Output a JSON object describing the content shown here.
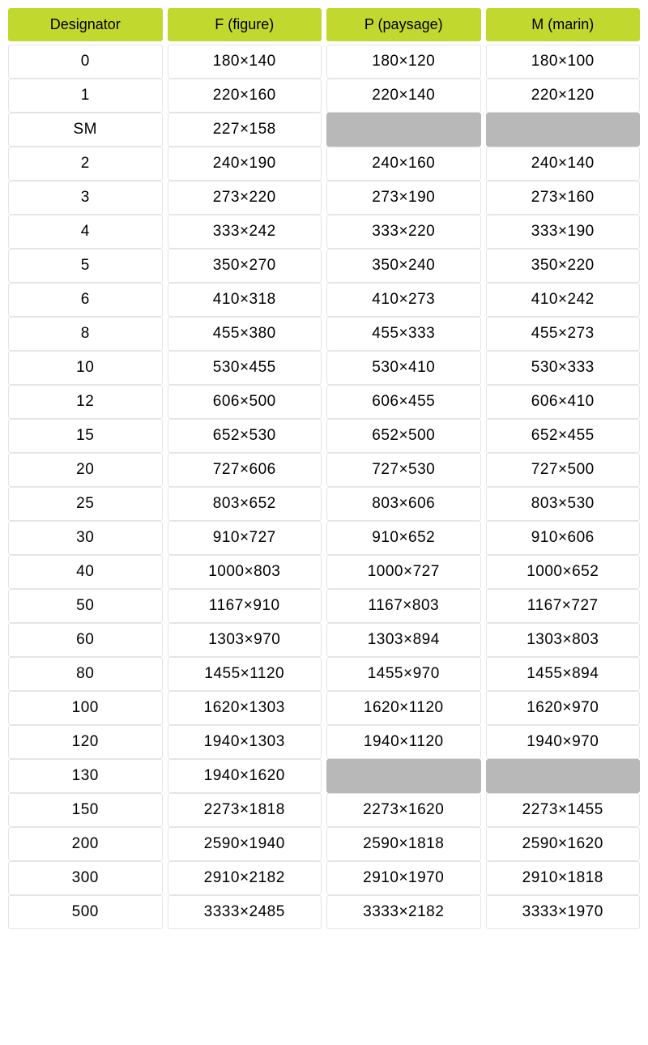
{
  "table": {
    "type": "table",
    "header_bg_color": "#c1d82f",
    "header_text_color": "#000000",
    "cell_bg_color": "#ffffff",
    "cell_border_color": "#e5e5e5",
    "empty_cell_bg_color": "#b8b8b8",
    "cell_text_color": "#000000",
    "header_fontsize": 18,
    "cell_fontsize": 19,
    "columns": [
      "Designator",
      "F (figure)",
      "P (paysage)",
      "M (marin)"
    ],
    "rows": [
      [
        "0",
        "180×140",
        "180×120",
        "180×100"
      ],
      [
        "1",
        "220×160",
        "220×140",
        "220×120"
      ],
      [
        "SM",
        "227×158",
        "",
        ""
      ],
      [
        "2",
        "240×190",
        "240×160",
        "240×140"
      ],
      [
        "3",
        "273×220",
        "273×190",
        "273×160"
      ],
      [
        "4",
        "333×242",
        "333×220",
        "333×190"
      ],
      [
        "5",
        "350×270",
        "350×240",
        "350×220"
      ],
      [
        "6",
        "410×318",
        "410×273",
        "410×242"
      ],
      [
        "8",
        "455×380",
        "455×333",
        "455×273"
      ],
      [
        "10",
        "530×455",
        "530×410",
        "530×333"
      ],
      [
        "12",
        "606×500",
        "606×455",
        "606×410"
      ],
      [
        "15",
        "652×530",
        "652×500",
        "652×455"
      ],
      [
        "20",
        "727×606",
        "727×530",
        "727×500"
      ],
      [
        "25",
        "803×652",
        "803×606",
        "803×530"
      ],
      [
        "30",
        "910×727",
        "910×652",
        "910×606"
      ],
      [
        "40",
        "1000×803",
        "1000×727",
        "1000×652"
      ],
      [
        "50",
        "1167×910",
        "1167×803",
        "1167×727"
      ],
      [
        "60",
        "1303×970",
        "1303×894",
        "1303×803"
      ],
      [
        "80",
        "1455×1120",
        "1455×970",
        "1455×894"
      ],
      [
        "100",
        "1620×1303",
        "1620×1120",
        "1620×970"
      ],
      [
        "120",
        "1940×1303",
        "1940×1120",
        "1940×970"
      ],
      [
        "130",
        "1940×1620",
        "",
        ""
      ],
      [
        "150",
        "2273×1818",
        "2273×1620",
        "2273×1455"
      ],
      [
        "200",
        "2590×1940",
        "2590×1818",
        "2590×1620"
      ],
      [
        "300",
        "2910×2182",
        "2910×1970",
        "2910×1818"
      ],
      [
        "500",
        "3333×2485",
        "3333×2182",
        "3333×1970"
      ]
    ]
  }
}
